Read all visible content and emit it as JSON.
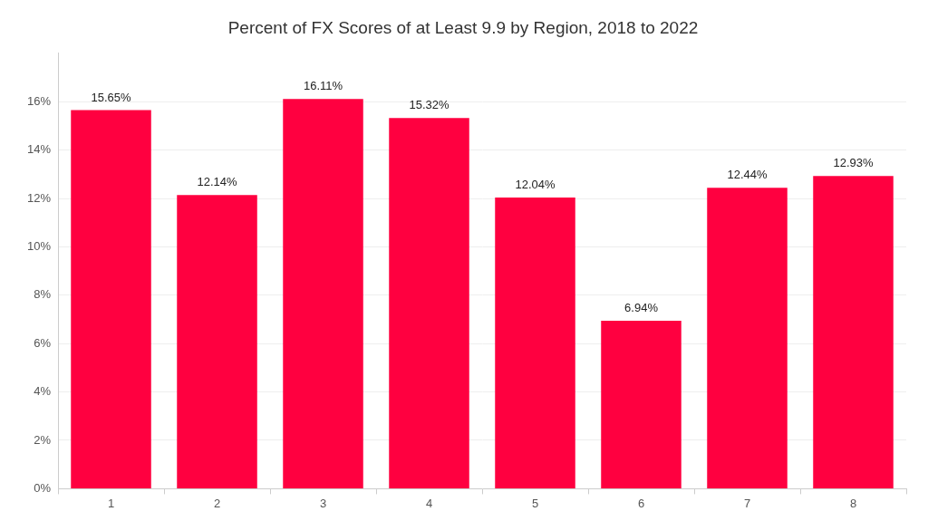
{
  "chart_data": {
    "type": "bar",
    "title": "Percent of FX Scores of at Least 9.9 by Region, 2018 to 2022",
    "categories": [
      "1",
      "2",
      "3",
      "4",
      "5",
      "6",
      "7",
      "8"
    ],
    "values": [
      15.65,
      12.14,
      16.11,
      15.32,
      12.04,
      6.94,
      12.44,
      12.93
    ],
    "value_labels": [
      "15.65%",
      "12.14%",
      "16.11%",
      "15.32%",
      "12.04%",
      "6.94%",
      "12.44%",
      "12.93%"
    ],
    "color": "#ff0040",
    "ylim": [
      0,
      18
    ],
    "yticks": [
      {
        "value": 0,
        "label": "0%"
      },
      {
        "value": 2,
        "label": "2%"
      },
      {
        "value": 4,
        "label": "4%"
      },
      {
        "value": 6,
        "label": "6%"
      },
      {
        "value": 8,
        "label": "8%"
      },
      {
        "value": 10,
        "label": "10%"
      },
      {
        "value": 12,
        "label": "12%"
      },
      {
        "value": 14,
        "label": "14%"
      },
      {
        "value": 16,
        "label": "16%"
      }
    ],
    "grid": true,
    "data_labels": true
  }
}
